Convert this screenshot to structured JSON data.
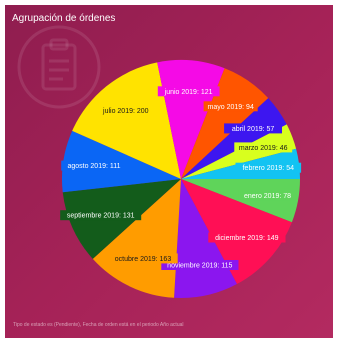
{
  "card": {
    "title": "Agrupación de órdenes",
    "footnote": "Tipo de estado es (Pendiente), Fecha de orden está en el periodo Año actual"
  },
  "watermark_icon": "clipboard-icon",
  "chart_data": {
    "type": "pie",
    "title": "Agrupación de órdenes",
    "slices": [
      {
        "label": "enero 2019: 78",
        "value": 78,
        "color": "#5fd45a",
        "label_bg": "#5fd45a",
        "label_fg": "#ffffff"
      },
      {
        "label": "diciembre 2019: 149",
        "value": 149,
        "color": "#ff0f55",
        "label_bg": "#ff0f55",
        "label_fg": "#ffffff"
      },
      {
        "label": "noviembre 2019: 115",
        "value": 115,
        "color": "#8b16ef",
        "label_bg": "#8b16ef",
        "label_fg": "#ffffff"
      },
      {
        "label": "octubre 2019: 163",
        "value": 163,
        "color": "#ff9c00",
        "label_bg": "#ff9c00",
        "label_fg": "#1a1a1a"
      },
      {
        "label": "septiembre 2019: 131",
        "value": 131,
        "color": "#135c1b",
        "label_bg": "#135c1b",
        "label_fg": "#ffffff"
      },
      {
        "label": "agosto 2019: 111",
        "value": 111,
        "color": "#0a66f5",
        "label_bg": "#0a66f5",
        "label_fg": "#ffffff"
      },
      {
        "label": "julio 2019: 200",
        "value": 200,
        "color": "#ffe300",
        "label_bg": "#ffe300",
        "label_fg": "#1a1a1a"
      },
      {
        "label": "junio 2019: 121",
        "value": 121,
        "color": "#f50ae6",
        "label_bg": "#f50ae6",
        "label_fg": "#ffffff"
      },
      {
        "label": "mayo 2019: 94",
        "value": 94,
        "color": "#ff5500",
        "label_bg": "#ff5500",
        "label_fg": "#ffffff"
      },
      {
        "label": "abril 2019: 57",
        "value": 57,
        "color": "#3d16f0",
        "label_bg": "#3d16f0",
        "label_fg": "#ffffff"
      },
      {
        "label": "marzo 2019: 46",
        "value": 46,
        "color": "#d8ff1e",
        "label_bg": "#d8ff1e",
        "label_fg": "#1a1a1a"
      },
      {
        "label": "febrero 2019: 54",
        "value": 54,
        "color": "#12c3f2",
        "label_bg": "#12c3f2",
        "label_fg": "#ffffff"
      }
    ]
  }
}
